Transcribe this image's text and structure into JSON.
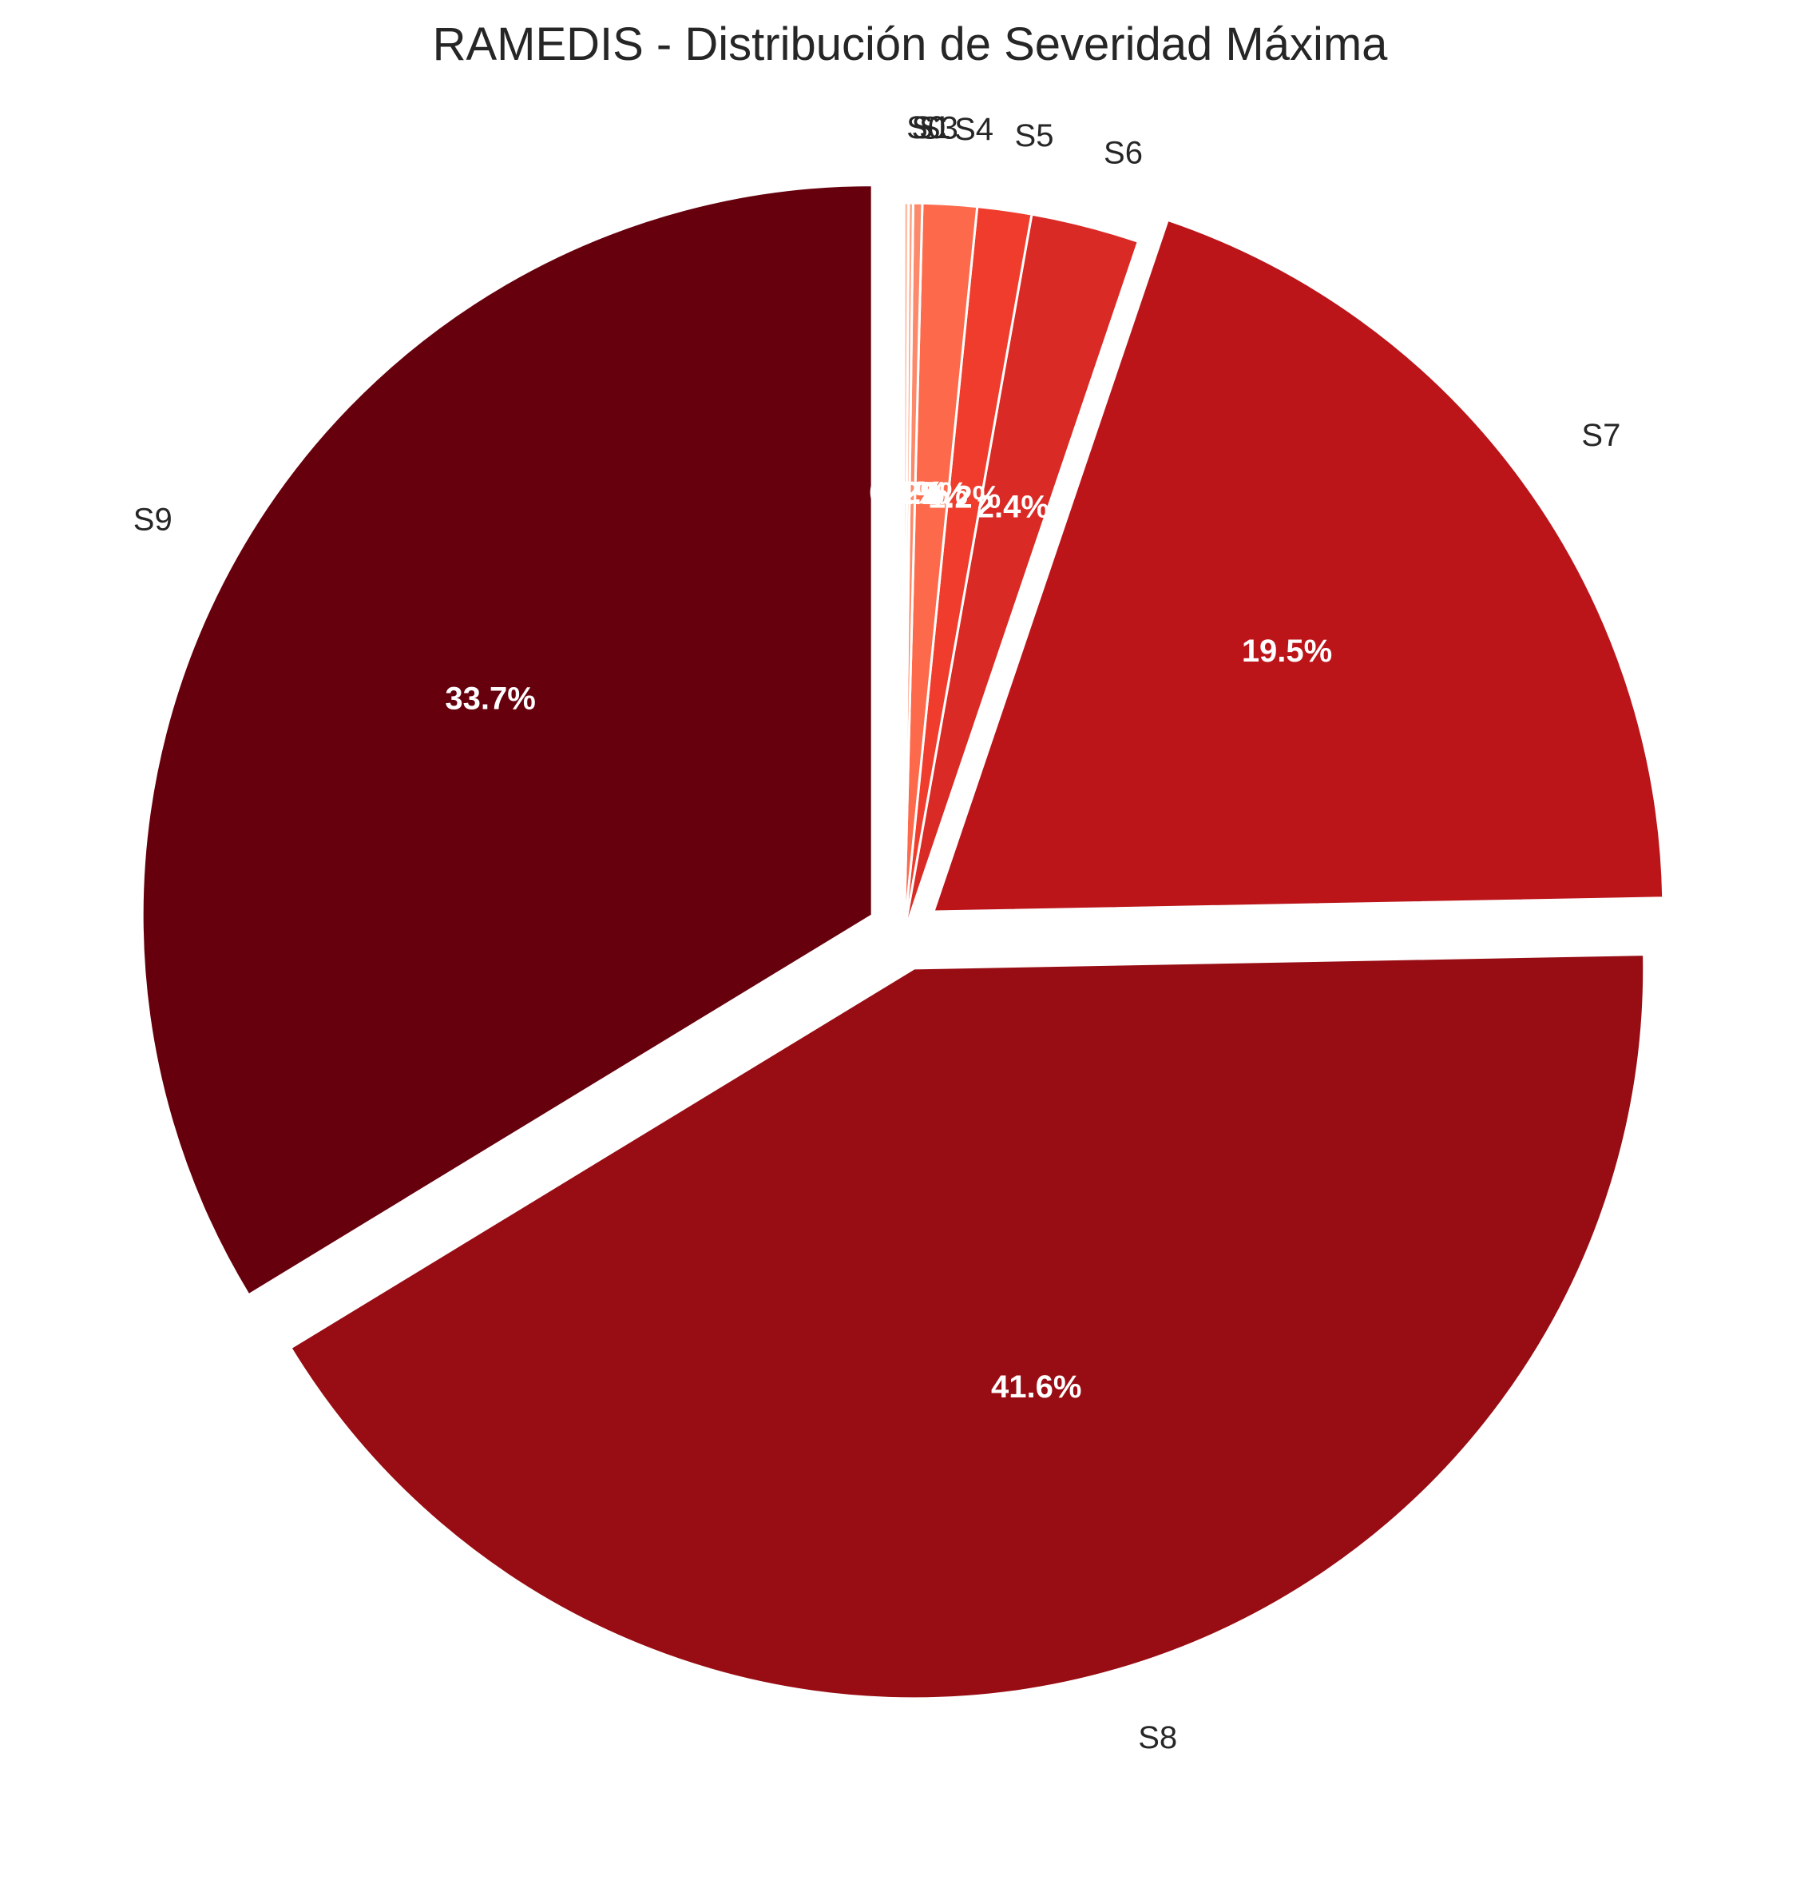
{
  "chart_data": {
    "type": "pie",
    "title": "RAMEDIS - Distribución de Severidad Máxima",
    "categories": [
      "S9",
      "S8",
      "S7",
      "S6",
      "S5",
      "S4",
      "S3",
      "S1",
      "S0"
    ],
    "values": [
      33.7,
      41.6,
      19.5,
      2.4,
      1.2,
      1.2,
      0.2,
      0.1,
      0.1
    ],
    "labels": [
      "33.7%",
      "41.6%",
      "19.5%",
      "2.4%",
      "1.2%",
      "1.2%",
      "0.2%",
      "0.1%",
      "0.1%"
    ],
    "colors": [
      "#67000d",
      "#980c13",
      "#bb151a",
      "#da2a25",
      "#ef3c2d",
      "#fc6a4b",
      "#fc8969",
      "#fca486",
      "#fdbea5"
    ],
    "explode": [
      true,
      true,
      true,
      false,
      false,
      false,
      false,
      false,
      false
    ],
    "start_angle_deg": 90,
    "direction": "counterclockwise",
    "legend": "none"
  }
}
